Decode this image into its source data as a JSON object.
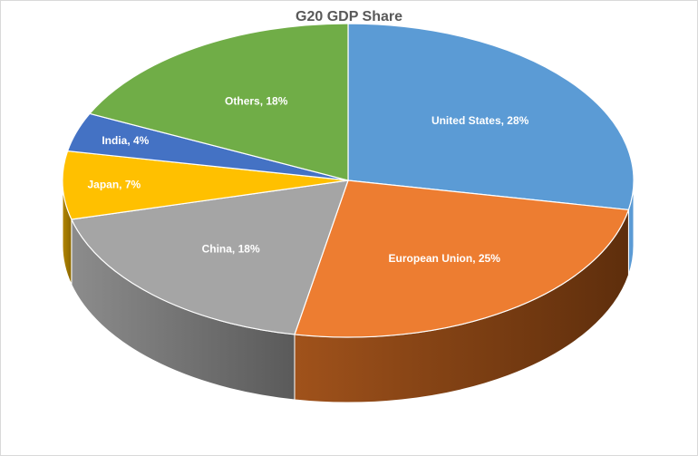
{
  "chart_data": {
    "type": "pie",
    "title": "G20 GDP Share",
    "style": "3d",
    "slices": [
      {
        "label": "United States",
        "value": 28,
        "label_text": "United States, 28%",
        "color": "#5B9BD5"
      },
      {
        "label": "European Union",
        "value": 25,
        "label_text": "European Union, 25%",
        "color": "#ED7D31"
      },
      {
        "label": "China",
        "value": 18,
        "label_text": "China, 18%",
        "color": "#A5A5A5"
      },
      {
        "label": "Japan",
        "value": 7,
        "label_text": "Japan, 7%",
        "color": "#FFC000"
      },
      {
        "label": "India",
        "value": 4,
        "label_text": "India, 4%",
        "color": "#4472C4"
      },
      {
        "label": "Others",
        "value": 18,
        "label_text": "Others, 18%",
        "color": "#70AD47"
      }
    ]
  }
}
